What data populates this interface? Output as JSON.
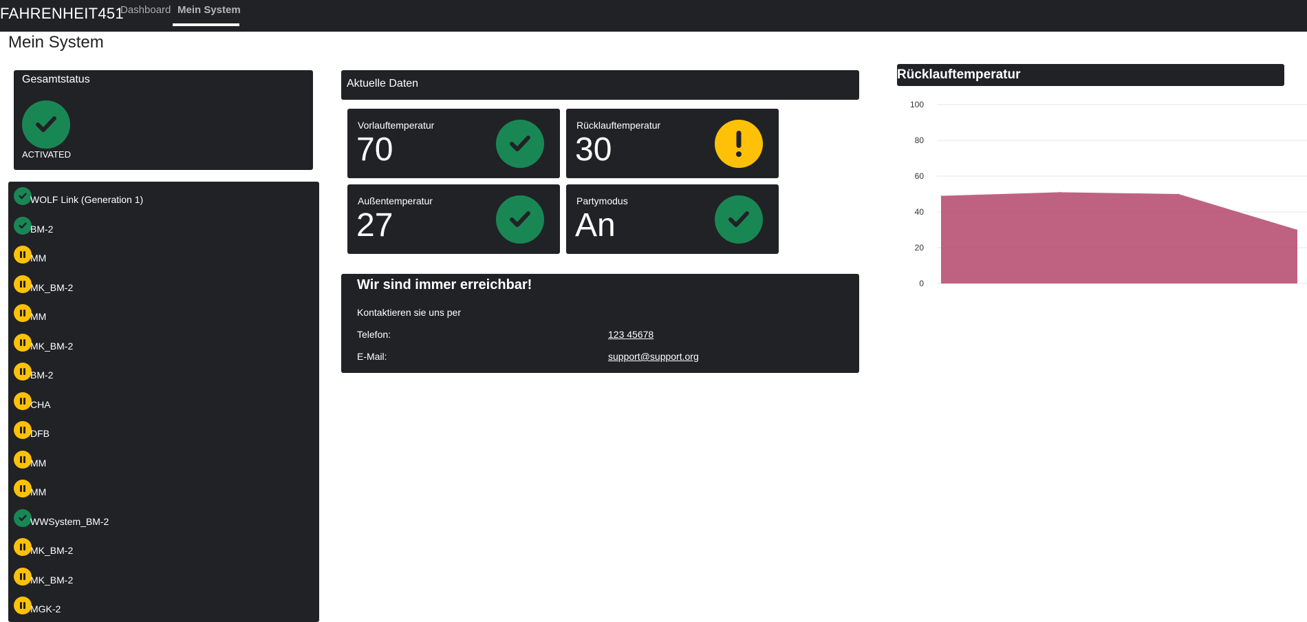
{
  "nav": {
    "brand": "FAHRENHEIT451",
    "tabs": [
      {
        "label": "Dashboard",
        "active": false
      },
      {
        "label": "Mein System",
        "active": true
      }
    ]
  },
  "page": {
    "title": "Mein System"
  },
  "gesamtstatus": {
    "title": "Gesamtstatus",
    "status": "ACTIVATED",
    "icon": "check-icon",
    "color": "#198754"
  },
  "devices": [
    {
      "label": "WOLF Link (Generation 1)",
      "state": "ok"
    },
    {
      "label": "BM-2",
      "state": "ok"
    },
    {
      "label": "MM",
      "state": "paused"
    },
    {
      "label": "MK_BM-2",
      "state": "paused"
    },
    {
      "label": "MM",
      "state": "paused"
    },
    {
      "label": "MK_BM-2",
      "state": "paused"
    },
    {
      "label": "BM-2",
      "state": "paused"
    },
    {
      "label": "CHA",
      "state": "paused"
    },
    {
      "label": "DFB",
      "state": "paused"
    },
    {
      "label": "MM",
      "state": "paused"
    },
    {
      "label": "MM",
      "state": "paused"
    },
    {
      "label": "WWSystem_BM-2",
      "state": "ok"
    },
    {
      "label": "MK_BM-2",
      "state": "paused"
    },
    {
      "label": "MK_BM-2",
      "state": "paused"
    },
    {
      "label": "MGK-2",
      "state": "paused"
    }
  ],
  "aktuelle_daten": {
    "title": "Aktuelle Daten",
    "tiles": [
      {
        "label": "Vorlauftemperatur",
        "value": "70",
        "icon": "check-icon",
        "state": "ok"
      },
      {
        "label": "Rücklauftemperatur",
        "value": "30",
        "icon": "exclamation-icon",
        "state": "warning"
      },
      {
        "label": "Außentemperatur",
        "value": "27",
        "icon": "check-icon",
        "state": "ok"
      },
      {
        "label": "Partymodus",
        "value": "An",
        "icon": "check-icon",
        "state": "ok"
      }
    ]
  },
  "contact": {
    "title": "Wir sind immer erreichbar!",
    "intro": "Kontaktieren sie uns per",
    "phone_label": "Telefon:",
    "phone_value": "123 45678",
    "email_label": "E-Mail:",
    "email_value": "support@support.org"
  },
  "colors": {
    "ok": "#198754",
    "warning": "#ffc107",
    "panel": "#212226",
    "chart_fill": "#b4476b"
  },
  "chart_data": {
    "type": "area",
    "title": "Rücklauftemperatur",
    "xlabel": "",
    "ylabel": "",
    "ylim": [
      0,
      100
    ],
    "yticks": [
      0,
      20,
      40,
      60,
      80,
      100
    ],
    "grid": true,
    "series": [
      {
        "values": [
          49,
          51,
          50,
          30
        ]
      }
    ]
  }
}
